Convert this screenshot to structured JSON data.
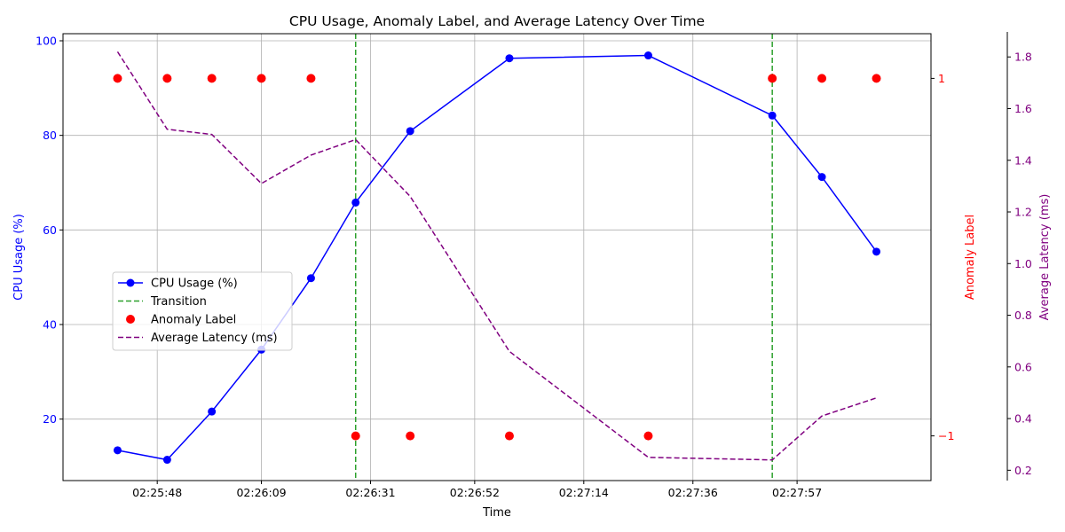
{
  "chart_data": {
    "type": "line",
    "title": "CPU Usage, Anomaly Label, and Average Latency Over Time",
    "xlabel": "Time",
    "x_ticks": [
      "02:25:48",
      "02:26:09",
      "02:26:31",
      "02:26:52",
      "02:27:14",
      "02:27:36",
      "02:27:57"
    ],
    "x": [
      "02:25:40",
      "02:25:50",
      "02:25:59",
      "02:26:09",
      "02:26:19",
      "02:26:28",
      "02:26:39",
      "02:26:59",
      "02:27:27",
      "02:27:52",
      "02:28:02",
      "02:28:13"
    ],
    "grid": true,
    "legend_position": "center-left",
    "axes": {
      "left": {
        "label": "CPU Usage (%)",
        "color": "#0000ff",
        "ylim": [
          7,
          101.5
        ],
        "ticks": [
          20,
          40,
          60,
          80,
          100
        ],
        "tick_labels": [
          "20",
          "40",
          "60",
          "80",
          "100"
        ]
      },
      "mid": {
        "label": "Anomaly Label",
        "color": "#ff0000",
        "ylim": [
          -1.25,
          1.25
        ],
        "ticks": [
          -1,
          1
        ],
        "tick_labels": [
          "−1",
          "1"
        ]
      },
      "right": {
        "label": "Average Latency (ms)",
        "color": "#800080",
        "ylim": [
          0.16,
          1.89
        ],
        "ticks": [
          0.2,
          0.4,
          0.6,
          0.8,
          1.0,
          1.2,
          1.4,
          1.6,
          1.8
        ],
        "tick_labels": [
          "0.2",
          "0.4",
          "0.6",
          "0.8",
          "1.0",
          "1.2",
          "1.4",
          "1.6",
          "1.8"
        ]
      }
    },
    "series": [
      {
        "name": "CPU Usage (%)",
        "axis": "left",
        "style": "line-marker",
        "color": "#0000ff",
        "values": [
          13.4,
          11.4,
          21.6,
          34.7,
          49.8,
          65.8,
          80.9,
          96.3,
          96.9,
          84.2,
          71.2,
          55.4
        ]
      },
      {
        "name": "Transition",
        "axis": "x",
        "style": "vline-dashed",
        "color": "#2ca02c",
        "x": [
          "02:26:28",
          "02:27:52"
        ]
      },
      {
        "name": "Anomaly Label",
        "axis": "mid",
        "style": "scatter",
        "color": "#ff0000",
        "values": [
          1,
          1,
          1,
          1,
          1,
          -1,
          -1,
          -1,
          -1,
          1,
          1,
          1
        ]
      },
      {
        "name": "Average Latency (ms)",
        "axis": "right",
        "style": "line-dashed",
        "color": "#800080",
        "values": [
          1.82,
          1.52,
          1.5,
          1.31,
          1.42,
          1.48,
          1.26,
          0.66,
          0.25,
          0.24,
          0.41,
          0.48
        ]
      }
    ]
  }
}
